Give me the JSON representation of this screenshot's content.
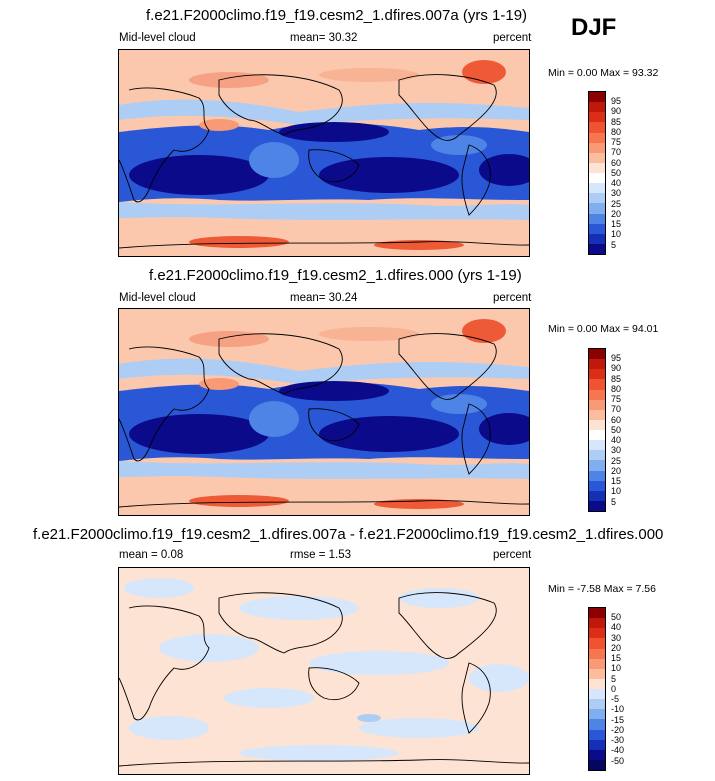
{
  "season": "DJF",
  "panels": [
    {
      "title": "f.e21.F2000climo.f19_f19.cesm2_1.dfires.007a (yrs 1-19)",
      "left_label": "Mid-level cloud",
      "center_label": "mean=  30.32",
      "right_label": "percent",
      "minmax": "Min =   0.00 Max =  93.32",
      "levels": [
        "95",
        "90",
        "85",
        "80",
        "75",
        "70",
        "60",
        "50",
        "40",
        "30",
        "25",
        "20",
        "15",
        "10",
        "5"
      ],
      "colors": [
        "#8b0000",
        "#c0190c",
        "#dc2e17",
        "#ef5330",
        "#f6774f",
        "#f89a75",
        "#fbbd9e",
        "#fde3d3",
        "#ffffff",
        "#d6e7fb",
        "#aecdf5",
        "#80aeef",
        "#4d84e6",
        "#2a57d6",
        "#1630b5",
        "#0a0a8a"
      ]
    },
    {
      "title": "f.e21.F2000climo.f19_f19.cesm2_1.dfires.000 (yrs 1-19)",
      "left_label": "Mid-level cloud",
      "center_label": "mean=  30.24",
      "right_label": "percent",
      "minmax": "Min =   0.00 Max =  94.01",
      "levels": [
        "95",
        "90",
        "85",
        "80",
        "75",
        "70",
        "60",
        "50",
        "40",
        "30",
        "25",
        "20",
        "15",
        "10",
        "5"
      ],
      "colors": [
        "#8b0000",
        "#c0190c",
        "#dc2e17",
        "#ef5330",
        "#f6774f",
        "#f89a75",
        "#fbbd9e",
        "#fde3d3",
        "#ffffff",
        "#d6e7fb",
        "#aecdf5",
        "#80aeef",
        "#4d84e6",
        "#2a57d6",
        "#1630b5",
        "#0a0a8a"
      ]
    },
    {
      "title": "f.e21.F2000climo.f19_f19.cesm2_1.dfires.007a - f.e21.F2000climo.f19_f19.cesm2_1.dfires.000",
      "left_label": "mean =   0.08",
      "center_label": "rmse =   1.53",
      "right_label": "percent",
      "minmax": "Min =  -7.58 Max =   7.56",
      "levels": [
        "50",
        "40",
        "30",
        "20",
        "15",
        "10",
        "5",
        "0",
        "-5",
        "-10",
        "-15",
        "-20",
        "-30",
        "-40",
        "-50"
      ],
      "colors": [
        "#8b0000",
        "#c0190c",
        "#dc2e17",
        "#ef5330",
        "#f6774f",
        "#f89a75",
        "#fbbd9e",
        "#fde3d3",
        "#d6e7fb",
        "#aecdf5",
        "#80aeef",
        "#4d84e6",
        "#2a57d6",
        "#1630b5",
        "#0a0a8a",
        "#06065e"
      ]
    }
  ]
}
